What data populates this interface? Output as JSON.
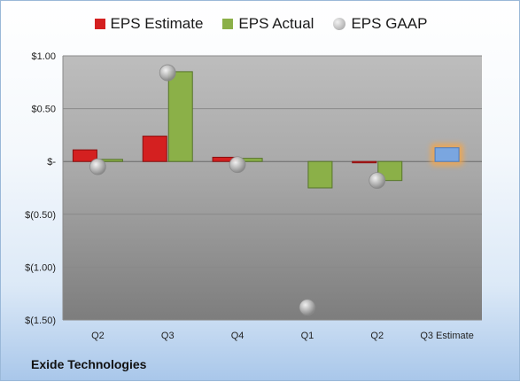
{
  "company": "Exide Technologies",
  "chart_data": {
    "type": "bar",
    "categories": [
      "Q2",
      "Q3",
      "Q4",
      "Q1",
      "Q2",
      "Q3 Estimate"
    ],
    "y_tick_labels": [
      "$1.00",
      "$0.50",
      "$-",
      "$(0.50)",
      "$(1.00)",
      "$(1.50)"
    ],
    "ylim": [
      -1.5,
      1.0
    ],
    "grid": true,
    "legend_position": "top",
    "series": [
      {
        "name": "EPS Estimate",
        "type": "bar",
        "color": "#d42020",
        "values": [
          0.11,
          0.24,
          0.04,
          null,
          -0.01,
          0.13
        ]
      },
      {
        "name": "EPS Actual",
        "type": "bar",
        "color": "#8bb048",
        "values": [
          0.02,
          0.85,
          0.03,
          -0.25,
          -0.18,
          null
        ]
      },
      {
        "name": "EPS GAAP",
        "type": "marker",
        "color": "#a8a8a8",
        "values": [
          -0.05,
          0.84,
          -0.03,
          -1.38,
          -0.18,
          null
        ]
      }
    ],
    "estimate_highlight": {
      "category": "Q3 Estimate",
      "color": "#7aa6e0",
      "glow": "#f5a64a"
    }
  }
}
